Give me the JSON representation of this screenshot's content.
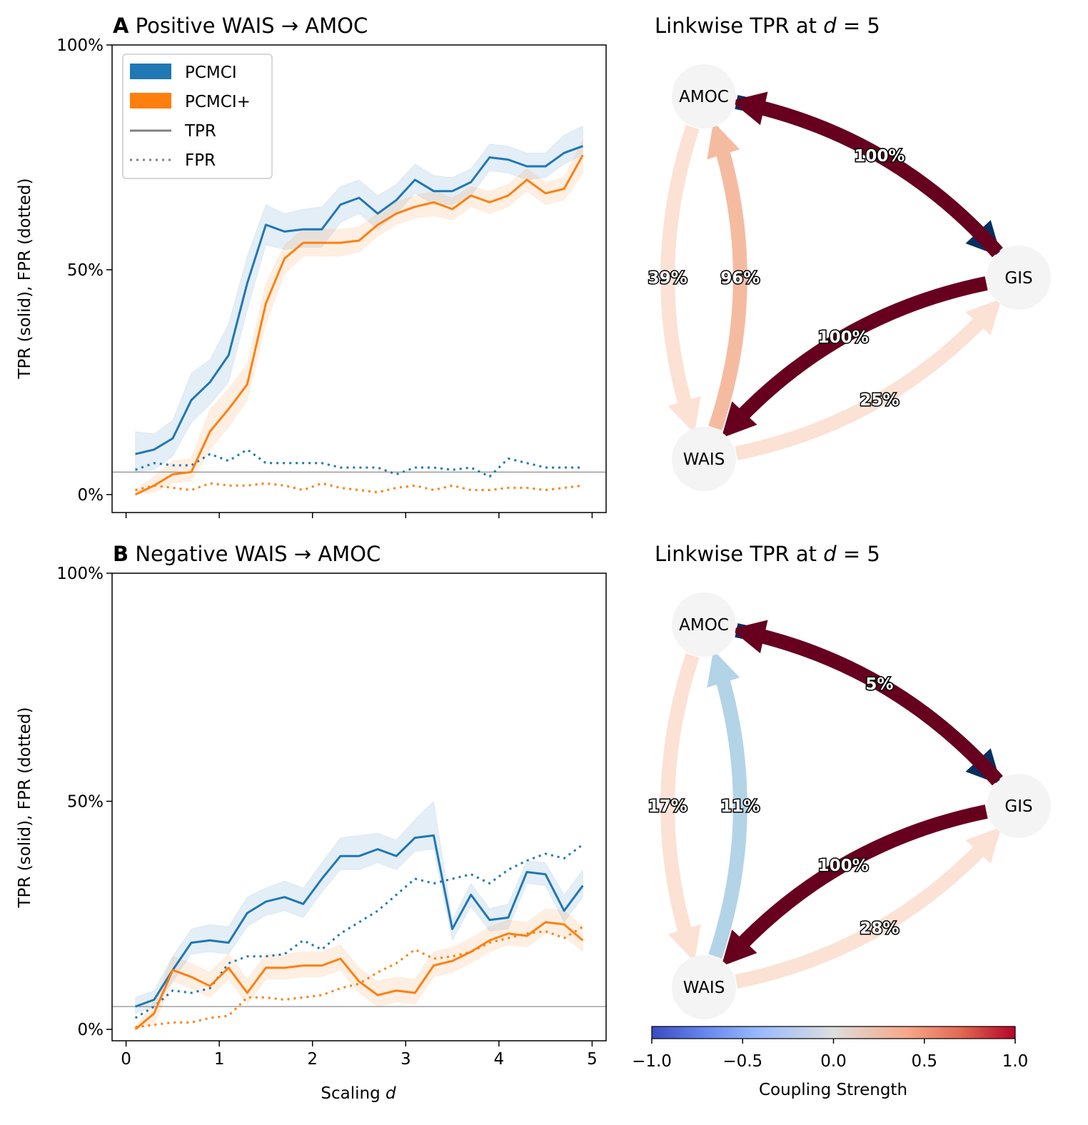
{
  "chart_data": [
    {
      "type": "line",
      "panel_letter": "A",
      "title": "Positive WAIS → AMOC",
      "xlabel": "Scaling d",
      "ylabel": "TPR (solid), FPR (dotted)",
      "xlim": [
        -0.15,
        5.15
      ],
      "ylim": [
        -0.04,
        1.0
      ],
      "xticks": [
        0,
        1,
        2,
        3,
        4,
        5
      ],
      "yticks": [
        {
          "value": 0,
          "label": "0%"
        },
        {
          "value": 0.5,
          "label": "50%"
        },
        {
          "value": 1.0,
          "label": "100%"
        }
      ],
      "reference_line": 0.05,
      "legend": {
        "position": "upper-left",
        "entries": [
          {
            "label": "PCMCI",
            "kind": "patch",
            "color": "#1f77b4"
          },
          {
            "label": "PCMCI+",
            "kind": "patch",
            "color": "#ff7f0e"
          },
          {
            "label": "TPR",
            "kind": "solid",
            "color": "#808080"
          },
          {
            "label": "FPR",
            "kind": "dotted",
            "color": "#808080"
          }
        ]
      },
      "x": [
        0.1,
        0.3,
        0.5,
        0.7,
        0.9,
        1.1,
        1.3,
        1.5,
        1.7,
        1.9,
        2.1,
        2.3,
        2.5,
        2.7,
        2.9,
        3.1,
        3.3,
        3.5,
        3.7,
        3.9,
        4.1,
        4.3,
        4.5,
        4.7,
        4.9
      ],
      "series": [
        {
          "name": "PCMCI",
          "metric": "TPR",
          "color": "#1f77b4",
          "values": [
            0.09,
            0.1,
            0.125,
            0.21,
            0.25,
            0.31,
            0.47,
            0.6,
            0.585,
            0.59,
            0.59,
            0.645,
            0.66,
            0.625,
            0.655,
            0.7,
            0.675,
            0.675,
            0.695,
            0.75,
            0.745,
            0.73,
            0.73,
            0.76,
            0.775
          ],
          "lower": [
            0.05,
            0.055,
            0.085,
            0.16,
            0.2,
            0.25,
            0.41,
            0.555,
            0.545,
            0.55,
            0.55,
            0.605,
            0.625,
            0.59,
            0.625,
            0.67,
            0.645,
            0.645,
            0.665,
            0.72,
            0.715,
            0.7,
            0.705,
            0.735,
            0.755
          ],
          "upper": [
            0.14,
            0.135,
            0.165,
            0.27,
            0.3,
            0.38,
            0.53,
            0.645,
            0.625,
            0.635,
            0.64,
            0.685,
            0.7,
            0.665,
            0.69,
            0.735,
            0.71,
            0.705,
            0.725,
            0.78,
            0.775,
            0.76,
            0.76,
            0.8,
            0.82
          ]
        },
        {
          "name": "PCMCI",
          "metric": "FPR",
          "color": "#1f77b4",
          "values": [
            0.055,
            0.07,
            0.065,
            0.065,
            0.09,
            0.075,
            0.1,
            0.07,
            0.07,
            0.07,
            0.07,
            0.06,
            0.06,
            0.06,
            0.045,
            0.06,
            0.06,
            0.055,
            0.06,
            0.04,
            0.08,
            0.07,
            0.06,
            0.06,
            0.06
          ]
        },
        {
          "name": "PCMCI+",
          "metric": "TPR",
          "color": "#ff7f0e",
          "values": [
            0.0,
            0.02,
            0.045,
            0.05,
            0.14,
            0.19,
            0.245,
            0.425,
            0.525,
            0.56,
            0.56,
            0.56,
            0.565,
            0.6,
            0.625,
            0.64,
            0.65,
            0.635,
            0.665,
            0.65,
            0.665,
            0.7,
            0.67,
            0.68,
            0.755
          ],
          "lower": [
            0.0,
            0.005,
            0.025,
            0.03,
            0.1,
            0.15,
            0.21,
            0.38,
            0.49,
            0.53,
            0.53,
            0.53,
            0.54,
            0.575,
            0.6,
            0.615,
            0.62,
            0.61,
            0.64,
            0.625,
            0.64,
            0.675,
            0.645,
            0.655,
            0.715
          ],
          "upper": [
            0.01,
            0.04,
            0.075,
            0.08,
            0.19,
            0.235,
            0.29,
            0.47,
            0.555,
            0.59,
            0.59,
            0.59,
            0.595,
            0.625,
            0.65,
            0.665,
            0.675,
            0.66,
            0.685,
            0.675,
            0.69,
            0.725,
            0.695,
            0.705,
            0.79
          ]
        },
        {
          "name": "PCMCI+",
          "metric": "FPR",
          "color": "#ff7f0e",
          "values": [
            0.01,
            0.02,
            0.015,
            0.01,
            0.025,
            0.02,
            0.02,
            0.025,
            0.02,
            0.01,
            0.025,
            0.015,
            0.01,
            0.005,
            0.015,
            0.02,
            0.01,
            0.02,
            0.01,
            0.01,
            0.015,
            0.015,
            0.01,
            0.015,
            0.02
          ]
        }
      ]
    },
    {
      "type": "line",
      "panel_letter": "B",
      "title": "Negative WAIS → AMOC",
      "xlabel": "Scaling d",
      "ylabel": "TPR (solid), FPR (dotted)",
      "xlim": [
        -0.15,
        5.15
      ],
      "ylim": [
        -0.025,
        1.0
      ],
      "xticks": [
        0,
        1,
        2,
        3,
        4,
        5
      ],
      "yticks": [
        {
          "value": 0,
          "label": "0%"
        },
        {
          "value": 0.5,
          "label": "50%"
        },
        {
          "value": 1.0,
          "label": "100%"
        }
      ],
      "reference_line": 0.05,
      "x": [
        0.1,
        0.3,
        0.5,
        0.7,
        0.9,
        1.1,
        1.3,
        1.5,
        1.7,
        1.9,
        2.1,
        2.3,
        2.5,
        2.7,
        2.9,
        3.1,
        3.3,
        3.5,
        3.7,
        3.9,
        4.1,
        4.3,
        4.5,
        4.7,
        4.9
      ],
      "series": [
        {
          "name": "PCMCI",
          "metric": "TPR",
          "color": "#1f77b4",
          "values": [
            0.05,
            0.065,
            0.13,
            0.19,
            0.195,
            0.19,
            0.255,
            0.28,
            0.29,
            0.275,
            0.33,
            0.38,
            0.38,
            0.395,
            0.38,
            0.42,
            0.425,
            0.22,
            0.295,
            0.24,
            0.245,
            0.345,
            0.34,
            0.26,
            0.315
          ],
          "lower": [
            0.035,
            0.05,
            0.105,
            0.165,
            0.17,
            0.165,
            0.225,
            0.25,
            0.26,
            0.245,
            0.3,
            0.35,
            0.35,
            0.365,
            0.35,
            0.39,
            0.395,
            0.195,
            0.27,
            0.215,
            0.22,
            0.32,
            0.315,
            0.235,
            0.29
          ],
          "upper": [
            0.07,
            0.085,
            0.16,
            0.22,
            0.23,
            0.225,
            0.29,
            0.31,
            0.325,
            0.31,
            0.365,
            0.42,
            0.425,
            0.43,
            0.415,
            0.46,
            0.5,
            0.24,
            0.32,
            0.265,
            0.275,
            0.37,
            0.365,
            0.295,
            0.35
          ]
        },
        {
          "name": "PCMCI",
          "metric": "FPR",
          "color": "#1f77b4",
          "values": [
            0.025,
            0.05,
            0.085,
            0.08,
            0.09,
            0.145,
            0.16,
            0.16,
            0.165,
            0.195,
            0.175,
            0.21,
            0.235,
            0.26,
            0.295,
            0.33,
            0.32,
            0.33,
            0.34,
            0.32,
            0.35,
            0.37,
            0.385,
            0.375,
            0.405
          ]
        },
        {
          "name": "PCMCI+",
          "metric": "TPR",
          "color": "#ff7f0e",
          "values": [
            0.0,
            0.035,
            0.13,
            0.115,
            0.095,
            0.135,
            0.08,
            0.135,
            0.135,
            0.14,
            0.14,
            0.155,
            0.105,
            0.075,
            0.085,
            0.08,
            0.14,
            0.15,
            0.17,
            0.195,
            0.21,
            0.205,
            0.235,
            0.23,
            0.195
          ],
          "lower": [
            0.0,
            0.01,
            0.105,
            0.09,
            0.07,
            0.11,
            0.055,
            0.11,
            0.11,
            0.115,
            0.115,
            0.13,
            0.08,
            0.05,
            0.06,
            0.055,
            0.115,
            0.125,
            0.145,
            0.17,
            0.185,
            0.18,
            0.21,
            0.205,
            0.17
          ],
          "upper": [
            0.005,
            0.06,
            0.16,
            0.145,
            0.125,
            0.165,
            0.11,
            0.165,
            0.165,
            0.17,
            0.17,
            0.185,
            0.135,
            0.105,
            0.115,
            0.11,
            0.17,
            0.18,
            0.2,
            0.225,
            0.24,
            0.235,
            0.265,
            0.26,
            0.225
          ]
        },
        {
          "name": "PCMCI+",
          "metric": "FPR",
          "color": "#ff7f0e",
          "values": [
            0.005,
            0.01,
            0.015,
            0.015,
            0.025,
            0.03,
            0.07,
            0.07,
            0.065,
            0.07,
            0.075,
            0.09,
            0.1,
            0.125,
            0.145,
            0.175,
            0.155,
            0.16,
            0.17,
            0.19,
            0.2,
            0.21,
            0.215,
            0.2,
            0.225
          ]
        }
      ]
    },
    {
      "type": "network",
      "title": "Linkwise TPR at d = 5",
      "nodes": [
        "AMOC",
        "GIS",
        "WAIS"
      ],
      "edges": [
        {
          "from": "AMOC",
          "to": "GIS",
          "label": "100%",
          "coupling": -1.0,
          "color": "#053061"
        },
        {
          "from": "GIS",
          "to": "AMOC",
          "label": "100%",
          "coupling": 1.0,
          "color": "#67001f"
        },
        {
          "from": "WAIS",
          "to": "AMOC",
          "label": "96%",
          "coupling": 0.35,
          "color": "#f5bba0"
        },
        {
          "from": "AMOC",
          "to": "WAIS",
          "label": "39%",
          "coupling": 0.15,
          "color": "#fbe2d4"
        },
        {
          "from": "WAIS",
          "to": "GIS",
          "label": "25%",
          "coupling": 0.15,
          "color": "#fbe2d4"
        },
        {
          "from": "GIS",
          "to": "WAIS",
          "label": "100%",
          "coupling": 1.0,
          "color": "#67001f"
        }
      ]
    },
    {
      "type": "network",
      "title": "Linkwise TPR at d = 5",
      "nodes": [
        "AMOC",
        "GIS",
        "WAIS"
      ],
      "edges": [
        {
          "from": "AMOC",
          "to": "GIS",
          "label": "5%",
          "coupling": -1.0,
          "color": "#053061"
        },
        {
          "from": "GIS",
          "to": "AMOC",
          "label": "5%",
          "coupling": 1.0,
          "color": "#67001f"
        },
        {
          "from": "WAIS",
          "to": "AMOC",
          "label": "11%",
          "coupling": -0.35,
          "color": "#b2d4e6"
        },
        {
          "from": "AMOC",
          "to": "WAIS",
          "label": "17%",
          "coupling": 0.15,
          "color": "#fbe2d4"
        },
        {
          "from": "WAIS",
          "to": "GIS",
          "label": "28%",
          "coupling": 0.15,
          "color": "#fbe2d4"
        },
        {
          "from": "GIS",
          "to": "WAIS",
          "label": "100%",
          "coupling": 1.0,
          "color": "#67001f"
        }
      ]
    }
  ],
  "colorbar": {
    "label": "Coupling Strength",
    "range": [
      -1.0,
      1.0
    ],
    "ticks": [
      "−1.0",
      "−0.5",
      "0.0",
      "0.5",
      "1.0"
    ],
    "colormap": "coolwarm"
  }
}
